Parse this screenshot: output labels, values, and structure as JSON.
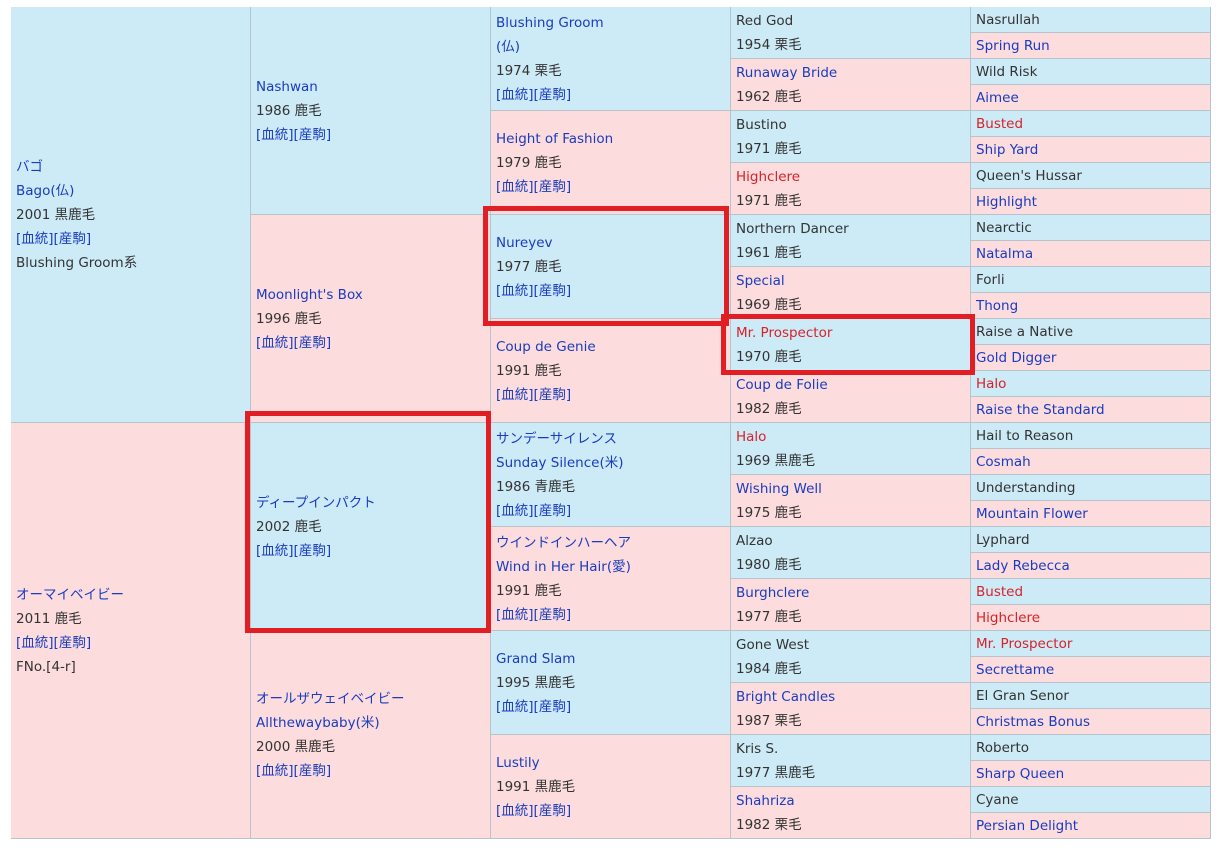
{
  "gen1": [
    {
      "name": "バゴ",
      "eng": "Bago(仏)",
      "year_color": "2001 黒鹿毛",
      "links": [
        "[血統]",
        "[産駒]"
      ],
      "line": "Blushing Groom系"
    },
    {
      "name": "オーマイベイビー",
      "year_color": "2011 鹿毛",
      "links": [
        "[血統]",
        "[産駒]"
      ],
      "fno": "FNo.[4-r]"
    }
  ],
  "gen2": [
    {
      "name": "Nashwan",
      "year_color": "1986 鹿毛",
      "links": [
        "[血統]",
        "[産駒]"
      ]
    },
    {
      "name": "Moonlight's Box",
      "year_color": "1996 鹿毛",
      "links": [
        "[血統]",
        "[産駒]"
      ]
    },
    {
      "name": "ディープインパクト",
      "year_color": "2002 鹿毛",
      "links": [
        "[血統]",
        "[産駒]"
      ]
    },
    {
      "name": "オールザウェイベイビー",
      "eng": "Allthewaybaby(米)",
      "year_color": "2000 黒鹿毛",
      "links": [
        "[血統]",
        "[産駒]"
      ]
    }
  ],
  "gen3": [
    {
      "name": "Blushing Groom",
      "name2": "(仏)",
      "year_color": "1974 栗毛",
      "links": [
        "[血統]",
        "[産駒]"
      ]
    },
    {
      "name": "Height of Fashion",
      "year_color": "1979 鹿毛",
      "links": [
        "[血統]",
        "[産駒]"
      ]
    },
    {
      "name": "Nureyev",
      "year_color": "1977 鹿毛",
      "links": [
        "[血統]",
        "[産駒]"
      ]
    },
    {
      "name": "Coup de Genie",
      "year_color": "1991 鹿毛",
      "links": [
        "[血統]",
        "[産駒]"
      ]
    },
    {
      "name": "サンデーサイレンス",
      "eng": "Sunday Silence(米)",
      "year_color": "1986 青鹿毛",
      "links": [
        "[血統]",
        "[産駒]"
      ]
    },
    {
      "name": "ウインドインハーヘア",
      "eng": "Wind in Her Hair(愛)",
      "year_color": "1991 鹿毛",
      "links": [
        "[血統]",
        "[産駒]"
      ]
    },
    {
      "name": "Grand Slam",
      "year_color": "1995 黒鹿毛",
      "links": [
        "[血統]",
        "[産駒]"
      ]
    },
    {
      "name": "Lustily",
      "year_color": "1991 黒鹿毛",
      "links": [
        "[血統]",
        "[産駒]"
      ]
    }
  ],
  "gen4": [
    {
      "name": "Red God",
      "year_color": "1954 栗毛",
      "style": "dark"
    },
    {
      "name": "Runaway Bride",
      "year_color": "1962 鹿毛",
      "style": "blue"
    },
    {
      "name": "Bustino",
      "year_color": "1971 鹿毛",
      "style": "dark"
    },
    {
      "name": "Highclere",
      "year_color": "1971 鹿毛",
      "style": "red"
    },
    {
      "name": "Northern Dancer",
      "year_color": "1961 鹿毛",
      "style": "dark"
    },
    {
      "name": "Special",
      "year_color": "1969 鹿毛",
      "style": "blue"
    },
    {
      "name": "Mr. Prospector",
      "year_color": "1970 鹿毛",
      "style": "red"
    },
    {
      "name": "Coup de Folie",
      "year_color": "1982 鹿毛",
      "style": "blue"
    },
    {
      "name": "Halo",
      "year_color": "1969 黒鹿毛",
      "style": "red"
    },
    {
      "name": "Wishing Well",
      "year_color": "1975 鹿毛",
      "style": "blue"
    },
    {
      "name": "Alzao",
      "year_color": "1980 鹿毛",
      "style": "dark"
    },
    {
      "name": "Burghclere",
      "year_color": "1977 鹿毛",
      "style": "blue"
    },
    {
      "name": "Gone West",
      "year_color": "1984 鹿毛",
      "style": "dark"
    },
    {
      "name": "Bright Candles",
      "year_color": "1987 栗毛",
      "style": "blue"
    },
    {
      "name": "Kris S.",
      "year_color": "1977 黒鹿毛",
      "style": "dark"
    },
    {
      "name": "Shahriza",
      "year_color": "1982 栗毛",
      "style": "blue"
    }
  ],
  "gen5": [
    {
      "name": "Nasrullah",
      "style": "dark"
    },
    {
      "name": "Spring Run",
      "style": "blue"
    },
    {
      "name": "Wild Risk",
      "style": "dark"
    },
    {
      "name": "Aimee",
      "style": "blue"
    },
    {
      "name": "Busted",
      "style": "red"
    },
    {
      "name": "Ship Yard",
      "style": "blue"
    },
    {
      "name": "Queen's Hussar",
      "style": "dark"
    },
    {
      "name": "Highlight",
      "style": "blue"
    },
    {
      "name": "Nearctic",
      "style": "dark"
    },
    {
      "name": "Natalma",
      "style": "blue"
    },
    {
      "name": "Forli",
      "style": "dark"
    },
    {
      "name": "Thong",
      "style": "blue"
    },
    {
      "name": "Raise a Native",
      "style": "dark"
    },
    {
      "name": "Gold Digger",
      "style": "blue"
    },
    {
      "name": "Halo",
      "style": "red"
    },
    {
      "name": "Raise the Standard",
      "style": "blue"
    },
    {
      "name": "Hail to Reason",
      "style": "dark"
    },
    {
      "name": "Cosmah",
      "style": "blue"
    },
    {
      "name": "Understanding",
      "style": "dark"
    },
    {
      "name": "Mountain Flower",
      "style": "blue"
    },
    {
      "name": "Lyphard",
      "style": "dark"
    },
    {
      "name": "Lady Rebecca",
      "style": "blue"
    },
    {
      "name": "Busted",
      "style": "red"
    },
    {
      "name": "Highclere",
      "style": "red"
    },
    {
      "name": "Mr. Prospector",
      "style": "red"
    },
    {
      "name": "Secrettame",
      "style": "blue"
    },
    {
      "name": "El Gran Senor",
      "style": "dark"
    },
    {
      "name": "Christmas Bonus",
      "style": "blue"
    },
    {
      "name": "Roberto",
      "style": "dark"
    },
    {
      "name": "Sharp Queen",
      "style": "blue"
    },
    {
      "name": "Cyane",
      "style": "dark"
    },
    {
      "name": "Persian Delight",
      "style": "blue"
    }
  ],
  "colors": {
    "male_bg": "#cdeaf7",
    "female_bg": "#fcdcdc",
    "link": "#1a3cc0",
    "inbreed": "#d8222a",
    "highlight_box": "#e01e24"
  }
}
